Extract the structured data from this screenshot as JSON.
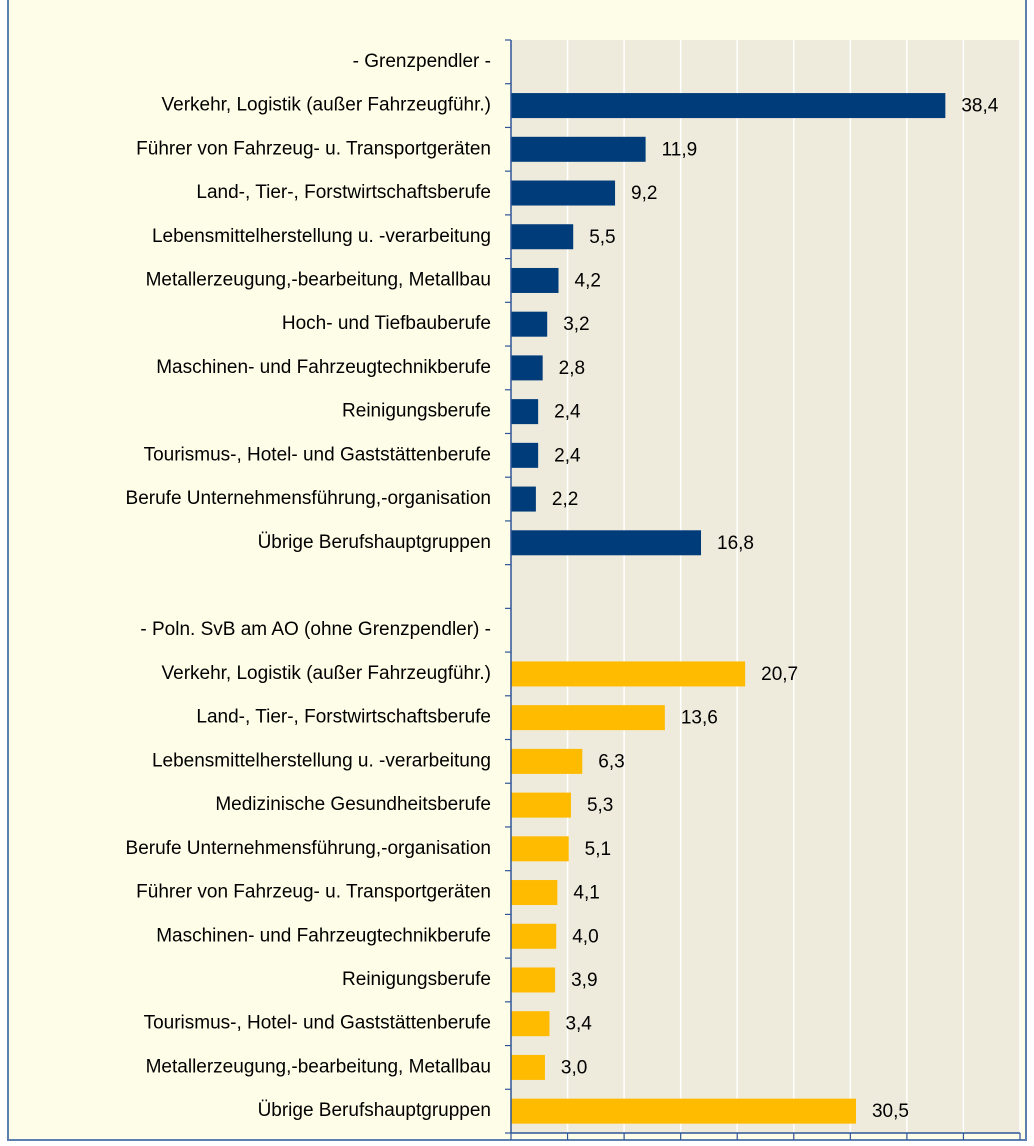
{
  "chart_data": {
    "type": "bar",
    "orientation": "horizontal",
    "categories": [
      "- Grenzpendler -",
      "Verkehr, Logistik (außer Fahrzeugführ.)",
      "Führer von Fahrzeug- u. Transportgeräten",
      "Land-, Tier-, Forstwirtschaftsberufe",
      "Lebensmittelherstellung u. -verarbeitung",
      "Metallerzeugung,-bearbeitung, Metallbau",
      "Hoch- und Tiefbauberufe",
      "Maschinen- und Fahrzeugtechnikberufe",
      "Reinigungsberufe",
      "Tourismus-, Hotel- und Gaststättenberufe",
      "Berufe Unternehmensführung,-organisation",
      "Übrige Berufshauptgruppen",
      null,
      "- Poln. SvB am AO (ohne Grenzpendler) -",
      "Verkehr, Logistik (außer Fahrzeugführ.)",
      "Land-, Tier-, Forstwirtschaftsberufe",
      "Lebensmittelherstellung u. -verarbeitung",
      "Medizinische Gesundheitsberufe",
      "Berufe Unternehmensführung,-organisation",
      "Führer von Fahrzeug- u. Transportgeräten",
      "Maschinen- und Fahrzeugtechnikberufe",
      "Reinigungsberufe",
      "Tourismus-, Hotel- und Gaststättenberufe",
      "Metallerzeugung,-bearbeitung, Metallbau",
      "Übrige Berufshauptgruppen"
    ],
    "values": [
      null,
      38.4,
      11.9,
      9.2,
      5.5,
      4.2,
      3.2,
      2.8,
      2.4,
      2.4,
      2.2,
      16.8,
      null,
      null,
      20.7,
      13.6,
      6.3,
      5.3,
      5.1,
      4.1,
      4.0,
      3.9,
      3.4,
      3.0,
      30.5
    ],
    "value_labels": [
      null,
      "38,4",
      "11,9",
      "9,2",
      "5,5",
      "4,2",
      "3,2",
      "2,8",
      "2,4",
      "2,4",
      "2,2",
      "16,8",
      null,
      null,
      "20,7",
      "13,6",
      "6,3",
      "5,3",
      "5,1",
      "4,1",
      "4,0",
      "3,9",
      "3,4",
      "3,0",
      "30,5"
    ],
    "colors": [
      null,
      "#003b7a",
      "#003b7a",
      "#003b7a",
      "#003b7a",
      "#003b7a",
      "#003b7a",
      "#003b7a",
      "#003b7a",
      "#003b7a",
      "#003b7a",
      "#003b7a",
      null,
      null,
      "#ffbb00",
      "#ffbb00",
      "#ffbb00",
      "#ffbb00",
      "#ffbb00",
      "#ffbb00",
      "#ffbb00",
      "#ffbb00",
      "#ffbb00",
      "#ffbb00",
      "#ffbb00"
    ],
    "xlim": [
      0,
      45
    ],
    "xticks": [
      0,
      5,
      10,
      15,
      20,
      25,
      30,
      35,
      40,
      45
    ],
    "grid": true
  }
}
